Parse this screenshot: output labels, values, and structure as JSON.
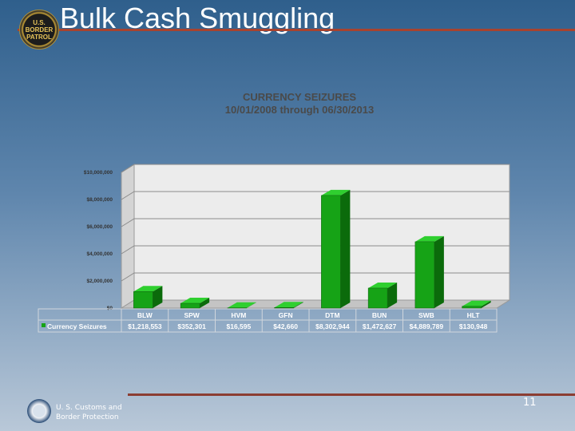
{
  "slide": {
    "title": "Bulk Cash Smuggling",
    "badge_text": [
      "U.S.",
      "BORDER",
      "PATROL"
    ],
    "footer_org": "U. S. Customs and\nBorder Protection",
    "page_number": "11",
    "colors": {
      "title_rule": "#a8432f",
      "bar_front": "#16a316",
      "bar_side": "#0b6b0b",
      "bar_top": "#2fcf2f"
    }
  },
  "chart_data": {
    "type": "bar",
    "title": "CURRENCY SEIZURES",
    "subtitle": "10/01/2008 through 06/30/2013",
    "categories": [
      "BLW",
      "SPW",
      "HVM",
      "GFN",
      "DTM",
      "BUN",
      "SWB",
      "HLT"
    ],
    "series": [
      {
        "name": "Currency Seizures",
        "values": [
          1218553,
          352301,
          16595,
          42660,
          8302944,
          1472627,
          4889789,
          130948
        ],
        "labels": [
          "$1,218,553",
          "$352,301",
          "$16,595",
          "$42,660",
          "$8,302,944",
          "$1,472,627",
          "$4,889,789",
          "$130,948"
        ]
      }
    ],
    "ylim": [
      0,
      10000000
    ],
    "yticks": [
      0,
      2000000,
      4000000,
      6000000,
      8000000,
      10000000
    ],
    "ytick_labels": [
      "$0",
      "$2,000,000",
      "$4,000,000",
      "$6,000,000",
      "$8,000,000",
      "$10,000,000"
    ],
    "grid": true,
    "legend": "data-table-left"
  }
}
